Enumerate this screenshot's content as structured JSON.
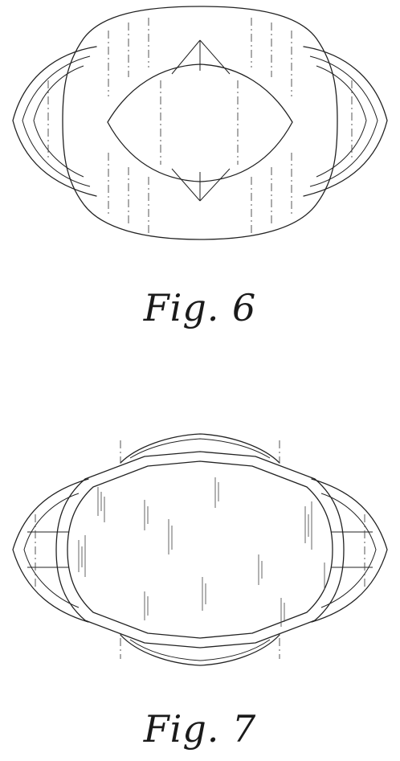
{
  "figures": [
    {
      "caption": "Fig. 6"
    },
    {
      "caption": "Fig. 7"
    }
  ]
}
